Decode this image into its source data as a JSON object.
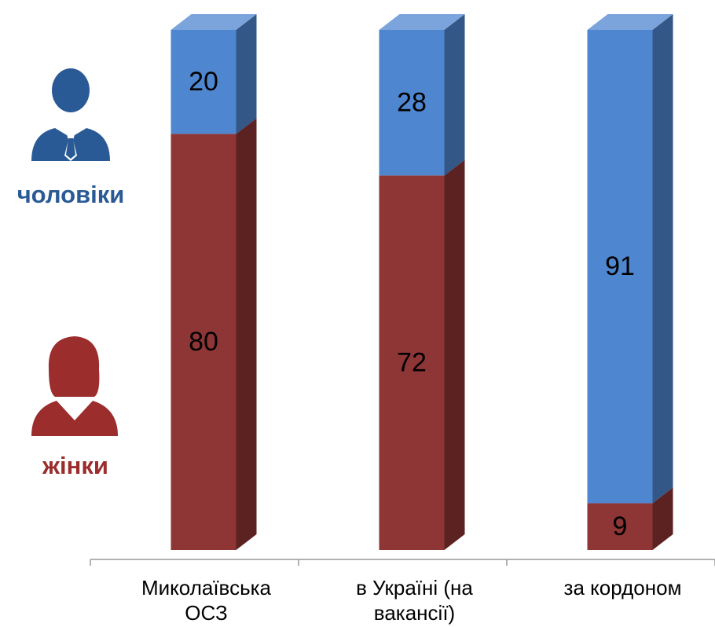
{
  "chart_data": {
    "type": "stacked-bar-3d",
    "categories": [
      "Миколаївська ОСЗ",
      "в Україні (на вакансії)",
      "за кордоном"
    ],
    "series": [
      {
        "name": "жінки",
        "color": "#8e3535",
        "values": [
          80,
          72,
          9
        ]
      },
      {
        "name": "чоловіки",
        "color": "#4f86d0",
        "values": [
          20,
          28,
          91
        ]
      }
    ],
    "legend": "left"
  }
}
